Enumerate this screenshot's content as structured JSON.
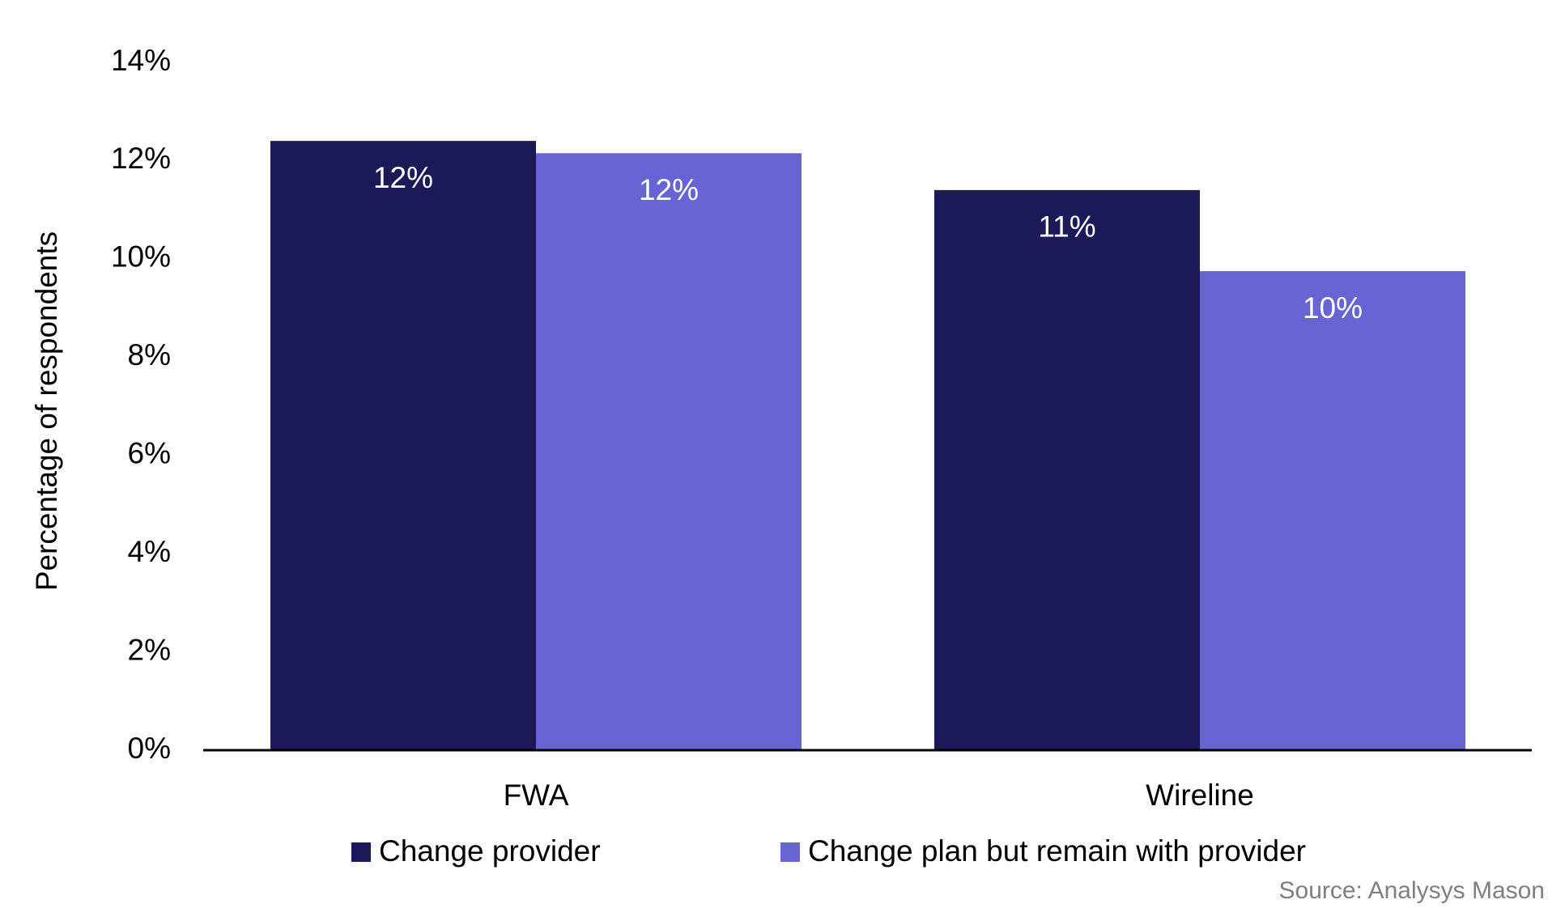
{
  "chart_data": {
    "type": "bar",
    "y_label": "Percentage of respondents",
    "categories": [
      "FWA",
      "Wireline"
    ],
    "series": [
      {
        "name": "Change provider",
        "color": "#1b1958",
        "values": [
          12.4,
          11.4
        ],
        "value_labels": [
          "12%",
          "11%"
        ]
      },
      {
        "name": "Change plan but remain with provider",
        "color": "#6764d3",
        "values": [
          12.15,
          9.75
        ],
        "value_labels": [
          "12%",
          "10%"
        ]
      }
    ],
    "ylim": [
      0,
      14
    ],
    "yticks": [
      {
        "value": 0,
        "label": "0%"
      },
      {
        "value": 2,
        "label": "2%"
      },
      {
        "value": 4,
        "label": "4%"
      },
      {
        "value": 6,
        "label": "6%"
      },
      {
        "value": 8,
        "label": "8%"
      },
      {
        "value": 10,
        "label": "10%"
      },
      {
        "value": 12,
        "label": "12%"
      },
      {
        "value": 14,
        "label": "14%"
      }
    ],
    "grid": false,
    "legend": "bottom",
    "source": "Source: Analysys Mason"
  }
}
